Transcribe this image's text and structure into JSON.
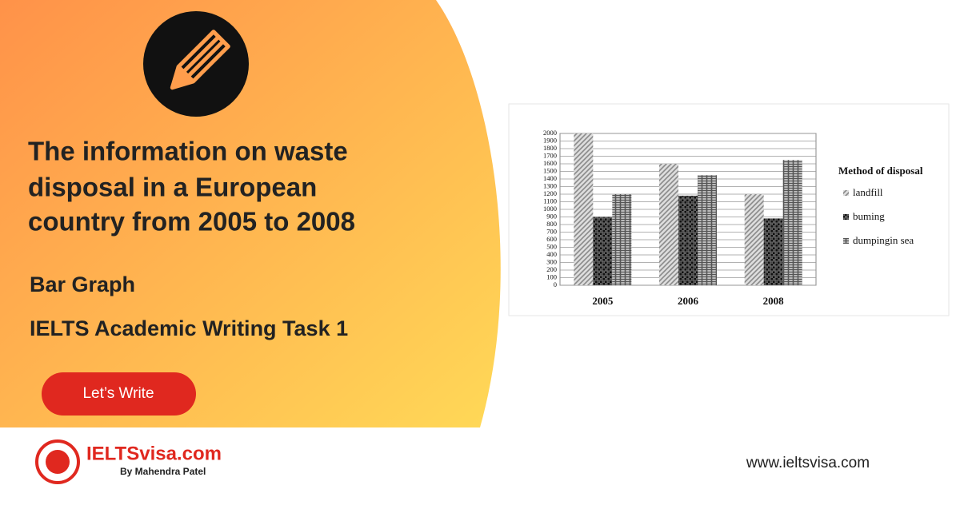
{
  "header": {
    "title_lines": [
      "The information on waste",
      "disposal in a European",
      "country from 2005 to 2008"
    ],
    "subtitle": "Bar Graph",
    "task": "IELTS Academic Writing Task 1",
    "button": "Let’s Write"
  },
  "footer": {
    "brand": "IELTSvisa.com",
    "byline": "By Mahendra Patel",
    "website": "www.ieltsvisa.com"
  },
  "chart_data": {
    "type": "bar",
    "categories": [
      "2005",
      "2006",
      "2008"
    ],
    "legend_title": "Method of disposal",
    "legend": "right",
    "grid": true,
    "series": [
      {
        "name": "landfill",
        "color": "#8a8a8a",
        "values": [
          2000,
          1600,
          1200
        ]
      },
      {
        "name": "buming",
        "color": "#111111",
        "values": [
          900,
          1180,
          880
        ]
      },
      {
        "name": "dumpingin sea",
        "color": "#555555",
        "values": [
          1200,
          1450,
          1650
        ]
      }
    ],
    "ylim": [
      0,
      2000
    ],
    "yticks": [
      0,
      100,
      200,
      300,
      400,
      500,
      600,
      700,
      800,
      900,
      1000,
      1100,
      1200,
      1300,
      1400,
      1500,
      1600,
      1700,
      1800,
      1900,
      2000
    ]
  }
}
